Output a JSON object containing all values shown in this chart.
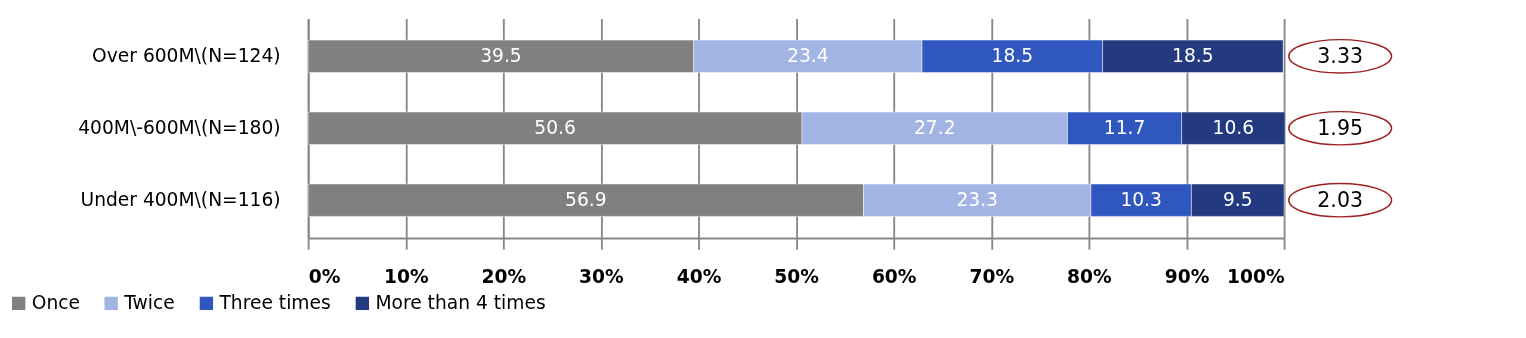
{
  "chart_data": {
    "type": "bar",
    "orientation": "horizontal",
    "stacked": true,
    "data_labels": true,
    "grid": "x",
    "legend": "bottom",
    "categories": [
      "Over 600M\\(N=124)",
      "400M\\-600M\\(N=180)",
      "Under 400M\\(N=116)"
    ],
    "series": [
      {
        "name": "Once",
        "color": "#808080",
        "values": [
          39.5,
          50.6,
          56.9
        ]
      },
      {
        "name": "Twice",
        "color": "#a2b4e4",
        "values": [
          23.4,
          27.2,
          23.3
        ]
      },
      {
        "name": "Three times",
        "color": "#3056c0",
        "values": [
          18.5,
          11.7,
          10.3
        ]
      },
      {
        "name": "More than 4 times",
        "color": "#233a80",
        "values": [
          18.5,
          10.6,
          9.5
        ]
      }
    ],
    "xlim": [
      0,
      100
    ],
    "xticks": [
      {
        "value": 0,
        "label": "0%"
      },
      {
        "value": 10,
        "label": "10%"
      },
      {
        "value": 20,
        "label": "20%"
      },
      {
        "value": 30,
        "label": "30%"
      },
      {
        "value": 40,
        "label": "40%"
      },
      {
        "value": 50,
        "label": "50%"
      },
      {
        "value": 60,
        "label": "60%"
      },
      {
        "value": 70,
        "label": "70%"
      },
      {
        "value": 80,
        "label": "80%"
      },
      {
        "value": 90,
        "label": "90%"
      },
      {
        "value": 100,
        "label": "100%"
      }
    ],
    "annotations": [
      "3.33",
      "1.95",
      "2.03"
    ]
  }
}
